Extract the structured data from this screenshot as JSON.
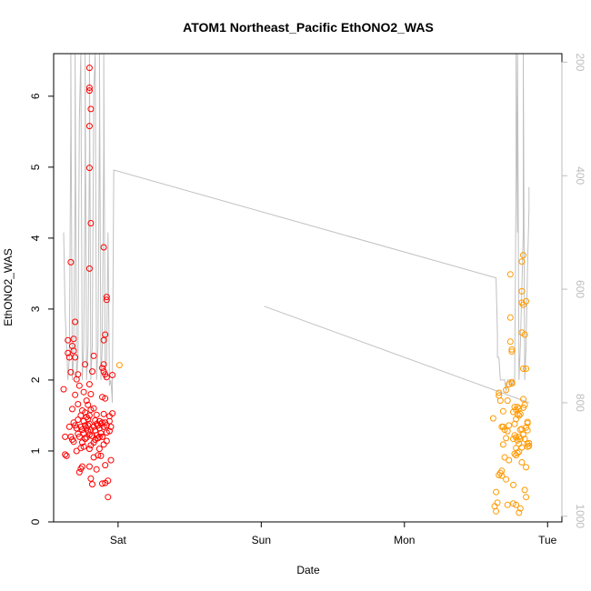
{
  "chart_data": {
    "type": "scatter",
    "title": "ATOM1 Northeast_Pacific EthONO2_WAS",
    "xlabel": "Date",
    "ylabel": "EthONO2_WAS",
    "x_ticks": [
      "Sat",
      "Sun",
      "Mon",
      "Tue"
    ],
    "xlim_days": [
      -0.45,
      3.1
    ],
    "ylim": [
      0,
      6.6
    ],
    "y_ticks": [
      0,
      1,
      2,
      3,
      4,
      5,
      6
    ],
    "y2_ticks": [
      200,
      400,
      600,
      800,
      1000
    ],
    "y2lim": [
      1010,
      185
    ],
    "grid": false,
    "colors": {
      "series_a": "#ff0000",
      "series_b": "#ff9900",
      "altitude_line": "#c0c0c0",
      "right_axis": "#bdbdbd"
    },
    "series": [
      {
        "color": "#ff0000",
        "points": [
          [
            -0.38,
            1.87
          ],
          [
            -0.37,
            1.2
          ],
          [
            -0.37,
            0.95
          ],
          [
            -0.36,
            0.93
          ],
          [
            -0.35,
            2.38
          ],
          [
            -0.35,
            2.56
          ],
          [
            -0.34,
            2.32
          ],
          [
            -0.34,
            1.34
          ],
          [
            -0.33,
            1.2
          ],
          [
            -0.33,
            2.11
          ],
          [
            -0.33,
            3.66
          ],
          [
            -0.32,
            2.48
          ],
          [
            -0.32,
            1.59
          ],
          [
            -0.32,
            1.16
          ],
          [
            -0.31,
            2.58
          ],
          [
            -0.31,
            2.41
          ],
          [
            -0.31,
            1.4
          ],
          [
            -0.31,
            1.13
          ],
          [
            -0.3,
            2.82
          ],
          [
            -0.3,
            2.32
          ],
          [
            -0.3,
            1.79
          ],
          [
            -0.3,
            1.36
          ],
          [
            -0.29,
            2.01
          ],
          [
            -0.29,
            1.32
          ],
          [
            -0.29,
            1.0
          ],
          [
            -0.28,
            2.08
          ],
          [
            -0.28,
            1.66
          ],
          [
            -0.28,
            1.44
          ],
          [
            -0.28,
            1.24
          ],
          [
            -0.27,
            1.92
          ],
          [
            -0.27,
            1.2
          ],
          [
            -0.27,
            0.7
          ],
          [
            -0.26,
            1.5
          ],
          [
            -0.26,
            1.34
          ],
          [
            -0.26,
            1.04
          ],
          [
            -0.26,
            0.75
          ],
          [
            -0.25,
            1.57
          ],
          [
            -0.25,
            1.3
          ],
          [
            -0.25,
            1.12
          ],
          [
            -0.25,
            0.78
          ],
          [
            -0.24,
            1.83
          ],
          [
            -0.24,
            1.42
          ],
          [
            -0.24,
            1.25
          ],
          [
            -0.24,
            1.06
          ],
          [
            -0.23,
            2.22
          ],
          [
            -0.23,
            1.54
          ],
          [
            -0.23,
            1.36
          ],
          [
            -0.23,
            1.17
          ],
          [
            -0.22,
            1.71
          ],
          [
            -0.22,
            1.48
          ],
          [
            -0.22,
            1.32
          ],
          [
            -0.22,
            1.19
          ],
          [
            -0.21,
            1.65
          ],
          [
            -0.21,
            1.45
          ],
          [
            -0.21,
            1.36
          ],
          [
            -0.21,
            1.28
          ],
          [
            -0.2,
            1.94
          ],
          [
            -0.2,
            1.5
          ],
          [
            -0.2,
            1.38
          ],
          [
            -0.2,
            1.23
          ],
          [
            -0.2,
            1.03
          ],
          [
            -0.2,
            0.78
          ],
          [
            -0.2,
            6.4
          ],
          [
            -0.2,
            6.12
          ],
          [
            -0.2,
            6.08
          ],
          [
            -0.19,
            5.82
          ],
          [
            -0.2,
            5.58
          ],
          [
            -0.2,
            4.99
          ],
          [
            -0.19,
            4.21
          ],
          [
            -0.2,
            3.57
          ],
          [
            -0.19,
            1.8
          ],
          [
            -0.19,
            1.58
          ],
          [
            -0.19,
            1.3
          ],
          [
            -0.19,
            1.08
          ],
          [
            -0.19,
            0.61
          ],
          [
            -0.18,
            2.12
          ],
          [
            -0.18,
            1.21
          ],
          [
            -0.18,
            0.53
          ],
          [
            -0.17,
            2.34
          ],
          [
            -0.17,
            1.6
          ],
          [
            -0.17,
            1.34
          ],
          [
            -0.17,
            1.12
          ],
          [
            -0.17,
            0.91
          ],
          [
            -0.16,
            1.43
          ],
          [
            -0.16,
            1.29
          ],
          [
            -0.16,
            1.16
          ],
          [
            -0.15,
            1.51
          ],
          [
            -0.15,
            1.38
          ],
          [
            -0.15,
            1.22
          ],
          [
            -0.15,
            0.74
          ],
          [
            -0.14,
            1.36
          ],
          [
            -0.14,
            1.18
          ],
          [
            -0.14,
            0.94
          ],
          [
            -0.13,
            1.42
          ],
          [
            -0.13,
            1.32
          ],
          [
            -0.13,
            1.2
          ],
          [
            -0.13,
            1.03
          ],
          [
            -0.12,
            1.38
          ],
          [
            -0.12,
            1.25
          ],
          [
            -0.12,
            0.93
          ],
          [
            -0.11,
            2.17
          ],
          [
            -0.11,
            1.76
          ],
          [
            -0.11,
            1.4
          ],
          [
            -0.11,
            1.2
          ],
          [
            -0.11,
            0.54
          ],
          [
            -0.1,
            3.87
          ],
          [
            -0.1,
            2.56
          ],
          [
            -0.1,
            2.22
          ],
          [
            -0.1,
            2.12
          ],
          [
            -0.1,
            1.52
          ],
          [
            -0.1,
            1.34
          ],
          [
            -0.1,
            1.09
          ],
          [
            -0.09,
            2.64
          ],
          [
            -0.09,
            2.08
          ],
          [
            -0.09,
            1.74
          ],
          [
            -0.09,
            1.4
          ],
          [
            -0.09,
            0.8
          ],
          [
            -0.09,
            0.55
          ],
          [
            -0.08,
            3.17
          ],
          [
            -0.08,
            3.13
          ],
          [
            -0.08,
            2.04
          ],
          [
            -0.08,
            1.36
          ],
          [
            -0.08,
            1.26
          ],
          [
            -0.08,
            1.14
          ],
          [
            -0.07,
            0.35
          ],
          [
            -0.07,
            0.58
          ],
          [
            -0.06,
            1.49
          ],
          [
            -0.06,
            1.42
          ],
          [
            -0.06,
            1.28
          ],
          [
            -0.05,
            1.34
          ],
          [
            -0.05,
            0.87
          ],
          [
            -0.04,
            2.07
          ],
          [
            -0.04,
            1.53
          ]
        ]
      },
      {
        "color": "#ff9900",
        "points": [
          [
            0.01,
            2.21
          ],
          [
            2.62,
            1.46
          ],
          [
            2.63,
            0.22
          ],
          [
            2.64,
            0.15
          ],
          [
            2.64,
            0.42
          ],
          [
            2.65,
            0.27
          ],
          [
            2.66,
            0.66
          ],
          [
            2.66,
            1.82
          ],
          [
            2.66,
            1.78
          ],
          [
            2.67,
            0.69
          ],
          [
            2.67,
            1.71
          ],
          [
            2.68,
            1.34
          ],
          [
            2.68,
            0.65
          ],
          [
            2.68,
            0.72
          ],
          [
            2.69,
            1.56
          ],
          [
            2.69,
            1.34
          ],
          [
            2.69,
            1.09
          ],
          [
            2.7,
            1.3
          ],
          [
            2.7,
            0.91
          ],
          [
            2.71,
            1.86
          ],
          [
            2.71,
            1.18
          ],
          [
            2.71,
            0.6
          ],
          [
            2.72,
            1.71
          ],
          [
            2.72,
            1.28
          ],
          [
            2.72,
            0.24
          ],
          [
            2.73,
            1.94
          ],
          [
            2.73,
            1.36
          ],
          [
            2.73,
            0.87
          ],
          [
            2.74,
            3.49
          ],
          [
            2.74,
            2.88
          ],
          [
            2.74,
            2.54
          ],
          [
            2.75,
            2.43
          ],
          [
            2.75,
            2.4
          ],
          [
            2.75,
            1.97
          ],
          [
            2.75,
            1.95
          ],
          [
            2.76,
            1.55
          ],
          [
            2.76,
            1.17
          ],
          [
            2.76,
            0.52
          ],
          [
            2.76,
            0.26
          ],
          [
            2.77,
            1.62
          ],
          [
            2.77,
            1.38
          ],
          [
            2.77,
            1.22
          ],
          [
            2.77,
            0.96
          ],
          [
            2.78,
            1.58
          ],
          [
            2.78,
            1.45
          ],
          [
            2.78,
            1.19
          ],
          [
            2.78,
            1.04
          ],
          [
            2.78,
            0.94
          ],
          [
            2.78,
            0.24
          ],
          [
            2.79,
            1.62
          ],
          [
            2.79,
            1.52
          ],
          [
            2.79,
            1.15
          ],
          [
            2.79,
            0.97
          ],
          [
            2.8,
            1.6
          ],
          [
            2.8,
            1.5
          ],
          [
            2.8,
            1.2
          ],
          [
            2.8,
            1.1
          ],
          [
            2.8,
            0.99
          ],
          [
            2.8,
            0.13
          ],
          [
            2.81,
            1.52
          ],
          [
            2.81,
            1.3
          ],
          [
            2.81,
            1.17
          ],
          [
            2.81,
            0.19
          ],
          [
            2.82,
            3.67
          ],
          [
            2.82,
            3.25
          ],
          [
            2.82,
            3.09
          ],
          [
            2.82,
            2.67
          ],
          [
            2.82,
            1.31
          ],
          [
            2.82,
            1.05
          ],
          [
            2.82,
            0.84
          ],
          [
            2.83,
            3.76
          ],
          [
            2.83,
            3.06
          ],
          [
            2.83,
            2.16
          ],
          [
            2.83,
            1.73
          ],
          [
            2.83,
            1.61
          ],
          [
            2.83,
            1.23
          ],
          [
            2.84,
            2.64
          ],
          [
            2.84,
            1.65
          ],
          [
            2.84,
            1.17
          ],
          [
            2.84,
            0.45
          ],
          [
            2.85,
            3.11
          ],
          [
            2.85,
            2.16
          ],
          [
            2.85,
            1.33
          ],
          [
            2.85,
            0.77
          ],
          [
            2.85,
            0.35
          ],
          [
            2.86,
            1.41
          ],
          [
            2.86,
            1.39
          ],
          [
            2.86,
            1.29
          ],
          [
            2.86,
            1.1
          ],
          [
            2.86,
            1.06
          ],
          [
            2.87,
            1.11
          ],
          [
            2.87,
            1.07
          ]
        ]
      }
    ],
    "altitude_line": {
      "color": "#c0c0c0",
      "points": [
        [
          -0.38,
          500
        ],
        [
          -0.37,
          640
        ],
        [
          -0.36,
          700
        ],
        [
          -0.35,
          760
        ],
        [
          -0.34,
          720
        ],
        [
          -0.33,
          300
        ],
        [
          -0.33,
          185
        ],
        [
          -0.32,
          760
        ],
        [
          -0.31,
          720
        ],
        [
          -0.3,
          420
        ],
        [
          -0.3,
          185
        ],
        [
          -0.29,
          760
        ],
        [
          -0.28,
          720
        ],
        [
          -0.27,
          300
        ],
        [
          -0.26,
          185
        ],
        [
          -0.25,
          760
        ],
        [
          -0.24,
          700
        ],
        [
          -0.23,
          400
        ],
        [
          -0.23,
          185
        ],
        [
          -0.22,
          760
        ],
        [
          -0.21,
          700
        ],
        [
          -0.2,
          350
        ],
        [
          -0.2,
          185
        ],
        [
          -0.19,
          760
        ],
        [
          -0.18,
          700
        ],
        [
          -0.17,
          250
        ],
        [
          -0.16,
          185
        ],
        [
          -0.15,
          760
        ],
        [
          -0.14,
          700
        ],
        [
          -0.13,
          300
        ],
        [
          -0.13,
          185
        ],
        [
          -0.12,
          760
        ],
        [
          -0.11,
          700
        ],
        [
          -0.1,
          350
        ],
        [
          -0.1,
          185
        ],
        [
          -0.09,
          760
        ],
        [
          -0.08,
          720
        ],
        [
          -0.07,
          500
        ],
        [
          -0.06,
          770
        ],
        [
          -0.05,
          760
        ],
        [
          -0.04,
          800
        ],
        [
          -0.04,
          780
        ],
        [
          -0.03,
          390
        ],
        [
          2.64,
          580
        ],
        [
          2.65,
          680
        ],
        [
          2.65,
          720
        ],
        [
          2.66,
          720
        ],
        [
          2.67,
          760
        ],
        [
          2.69,
          760
        ],
        [
          2.7,
          760
        ],
        [
          2.71,
          780
        ],
        [
          2.72,
          760
        ],
        [
          2.73,
          760
        ],
        [
          2.74,
          760
        ],
        [
          2.75,
          770
        ],
        [
          2.76,
          760
        ],
        [
          2.77,
          770
        ],
        [
          2.78,
          400
        ],
        [
          2.78,
          185
        ],
        [
          2.79,
          500
        ],
        [
          2.79,
          185
        ],
        [
          2.8,
          760
        ],
        [
          2.81,
          700
        ],
        [
          2.82,
          600
        ],
        [
          2.83,
          500
        ],
        [
          2.83,
          185
        ],
        [
          2.84,
          760
        ],
        [
          2.85,
          700
        ],
        [
          2.86,
          560
        ],
        [
          2.87,
          460
        ],
        [
          2.87,
          420
        ]
      ],
      "segment2": [
        [
          1.02,
          630
        ],
        [
          2.87,
          800
        ]
      ]
    }
  }
}
